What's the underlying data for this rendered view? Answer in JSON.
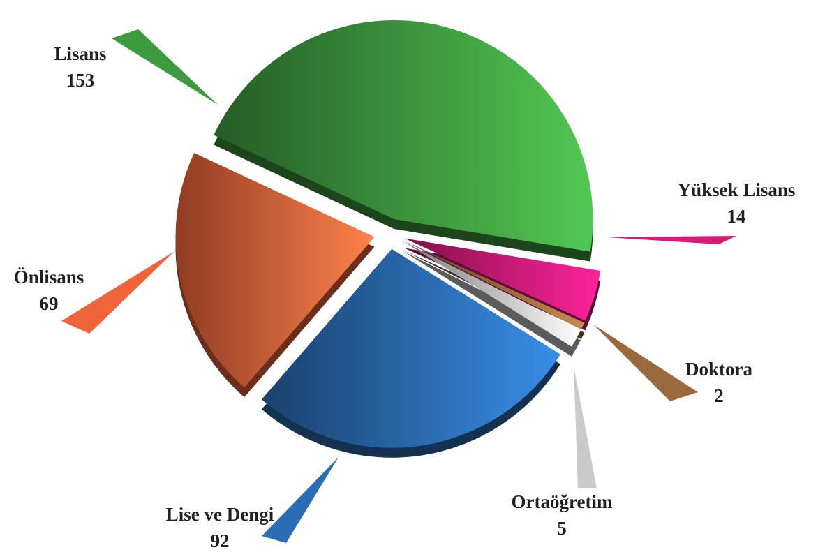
{
  "chart_data": {
    "type": "pie",
    "categories": [
      "Lisans",
      "Yüksek Lisans",
      "Doktora",
      "Ortaöğretim",
      "Lise ve Dengi",
      "Önlisans"
    ],
    "values": [
      153,
      14,
      2,
      5,
      92,
      69
    ],
    "colors": [
      "#3e9a3f",
      "#d81b78",
      "#9a6a3e",
      "#c8cacc",
      "#2b6db4",
      "#f0643a"
    ]
  }
}
